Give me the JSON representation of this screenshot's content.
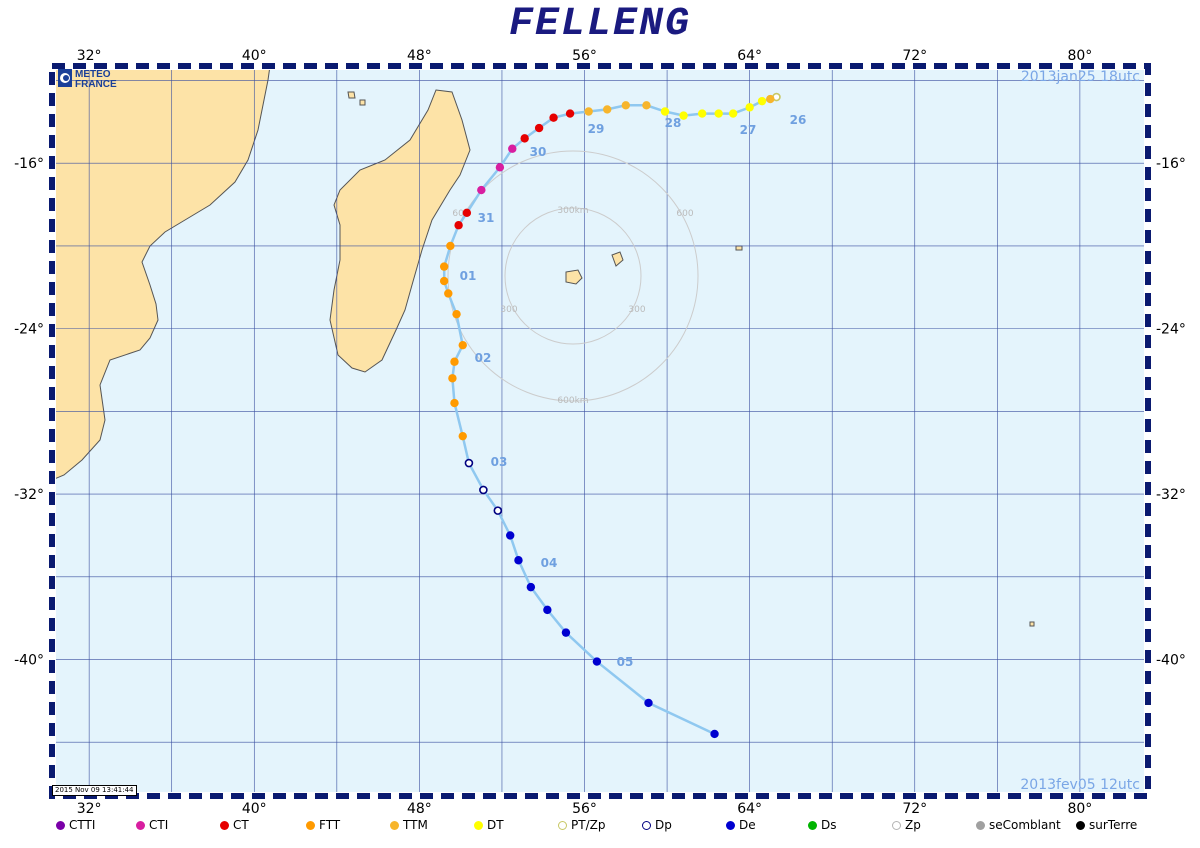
{
  "title": "FELLENG",
  "start_label": "2013jan25  18utc",
  "end_label": "2013fev05  12utc",
  "stamp": "2015 Nov 09 13:41:44",
  "logo": {
    "line1": "METEO",
    "line2": "FRANCE"
  },
  "lon_labels": [
    "32°",
    "40°",
    "48°",
    "56°",
    "64°",
    "72°",
    "80°"
  ],
  "lat_labels": [
    "-16°",
    "-24°",
    "-32°",
    "-40°"
  ],
  "ring_labels": {
    "inner": "300km",
    "outer": "600km",
    "inner_short": "300",
    "outer_short": "600"
  },
  "day_labels": [
    "26",
    "27",
    "28",
    "29",
    "30",
    "31",
    "01",
    "02",
    "03",
    "04",
    "05"
  ],
  "legend": [
    {
      "label": "CTTI",
      "color": "#7a00a8",
      "style": "filled"
    },
    {
      "label": "CTI",
      "color": "#d81ea0",
      "style": "filled"
    },
    {
      "label": "CT",
      "color": "#e60000",
      "style": "filled"
    },
    {
      "label": "FTT",
      "color": "#ff9a00",
      "style": "filled"
    },
    {
      "label": "TTM",
      "color": "#f7b52c",
      "style": "filled"
    },
    {
      "label": "DT",
      "color": "#ffff00",
      "style": "filled"
    },
    {
      "label": "PT/Zp",
      "color": "#c8c864",
      "style": "ring"
    },
    {
      "label": "Dp",
      "color": "#000080",
      "style": "ring"
    },
    {
      "label": "De",
      "color": "#0000d0",
      "style": "filled"
    },
    {
      "label": "Ds",
      "color": "#00b400",
      "style": "filled"
    },
    {
      "label": "Zp",
      "color": "#b4b4b4",
      "style": "ring"
    },
    {
      "label": "seComblant",
      "color": "#a0a0a0",
      "style": "filled"
    },
    {
      "label": "surTerre",
      "color": "#000000",
      "style": "filled"
    }
  ],
  "track": [
    {
      "lon": 65.3,
      "lat": -12.8,
      "cat": "PT/Zp"
    },
    {
      "lon": 65.0,
      "lat": -12.9,
      "cat": "TTM"
    },
    {
      "lon": 64.6,
      "lat": -13.0,
      "cat": "DT"
    },
    {
      "lon": 64.0,
      "lat": -13.3,
      "cat": "DT"
    },
    {
      "lon": 63.2,
      "lat": -13.6,
      "cat": "DT"
    },
    {
      "lon": 62.5,
      "lat": -13.6,
      "cat": "DT"
    },
    {
      "lon": 61.7,
      "lat": -13.6,
      "cat": "DT"
    },
    {
      "lon": 60.8,
      "lat": -13.7,
      "cat": "DT"
    },
    {
      "lon": 59.9,
      "lat": -13.5,
      "cat": "DT"
    },
    {
      "lon": 59.0,
      "lat": -13.2,
      "cat": "TTM"
    },
    {
      "lon": 58.0,
      "lat": -13.2,
      "cat": "TTM"
    },
    {
      "lon": 57.1,
      "lat": -13.4,
      "cat": "TTM"
    },
    {
      "lon": 56.2,
      "lat": -13.5,
      "cat": "TTM"
    },
    {
      "lon": 55.3,
      "lat": -13.6,
      "cat": "CT"
    },
    {
      "lon": 54.5,
      "lat": -13.8,
      "cat": "CT"
    },
    {
      "lon": 53.8,
      "lat": -14.3,
      "cat": "CT"
    },
    {
      "lon": 53.1,
      "lat": -14.8,
      "cat": "CT"
    },
    {
      "lon": 52.5,
      "lat": -15.3,
      "cat": "CTI"
    },
    {
      "lon": 51.9,
      "lat": -16.2,
      "cat": "CTI"
    },
    {
      "lon": 51.0,
      "lat": -17.3,
      "cat": "CTI"
    },
    {
      "lon": 50.3,
      "lat": -18.4,
      "cat": "CT"
    },
    {
      "lon": 49.9,
      "lat": -19.0,
      "cat": "CT"
    },
    {
      "lon": 49.5,
      "lat": -20.0,
      "cat": "FTT"
    },
    {
      "lon": 49.2,
      "lat": -21.0,
      "cat": "FTT"
    },
    {
      "lon": 49.2,
      "lat": -21.7,
      "cat": "FTT"
    },
    {
      "lon": 49.4,
      "lat": -22.3,
      "cat": "FTT"
    },
    {
      "lon": 49.8,
      "lat": -23.3,
      "cat": "FTT"
    },
    {
      "lon": 50.1,
      "lat": -24.8,
      "cat": "FTT"
    },
    {
      "lon": 49.7,
      "lat": -25.6,
      "cat": "FTT"
    },
    {
      "lon": 49.6,
      "lat": -26.4,
      "cat": "FTT"
    },
    {
      "lon": 49.7,
      "lat": -27.6,
      "cat": "FTT"
    },
    {
      "lon": 50.1,
      "lat": -29.2,
      "cat": "FTT"
    },
    {
      "lon": 50.4,
      "lat": -30.5,
      "cat": "Dp"
    },
    {
      "lon": 51.1,
      "lat": -31.8,
      "cat": "Dp"
    },
    {
      "lon": 51.8,
      "lat": -32.8,
      "cat": "Dp"
    },
    {
      "lon": 52.4,
      "lat": -34.0,
      "cat": "De"
    },
    {
      "lon": 52.8,
      "lat": -35.2,
      "cat": "De"
    },
    {
      "lon": 53.4,
      "lat": -36.5,
      "cat": "De"
    },
    {
      "lon": 54.2,
      "lat": -37.6,
      "cat": "De"
    },
    {
      "lon": 55.1,
      "lat": -38.7,
      "cat": "De"
    },
    {
      "lon": 56.6,
      "lat": -40.1,
      "cat": "De"
    },
    {
      "lon": 59.1,
      "lat": -42.1,
      "cat": "De"
    },
    {
      "lon": 62.3,
      "lat": -43.6,
      "cat": "De"
    }
  ]
}
